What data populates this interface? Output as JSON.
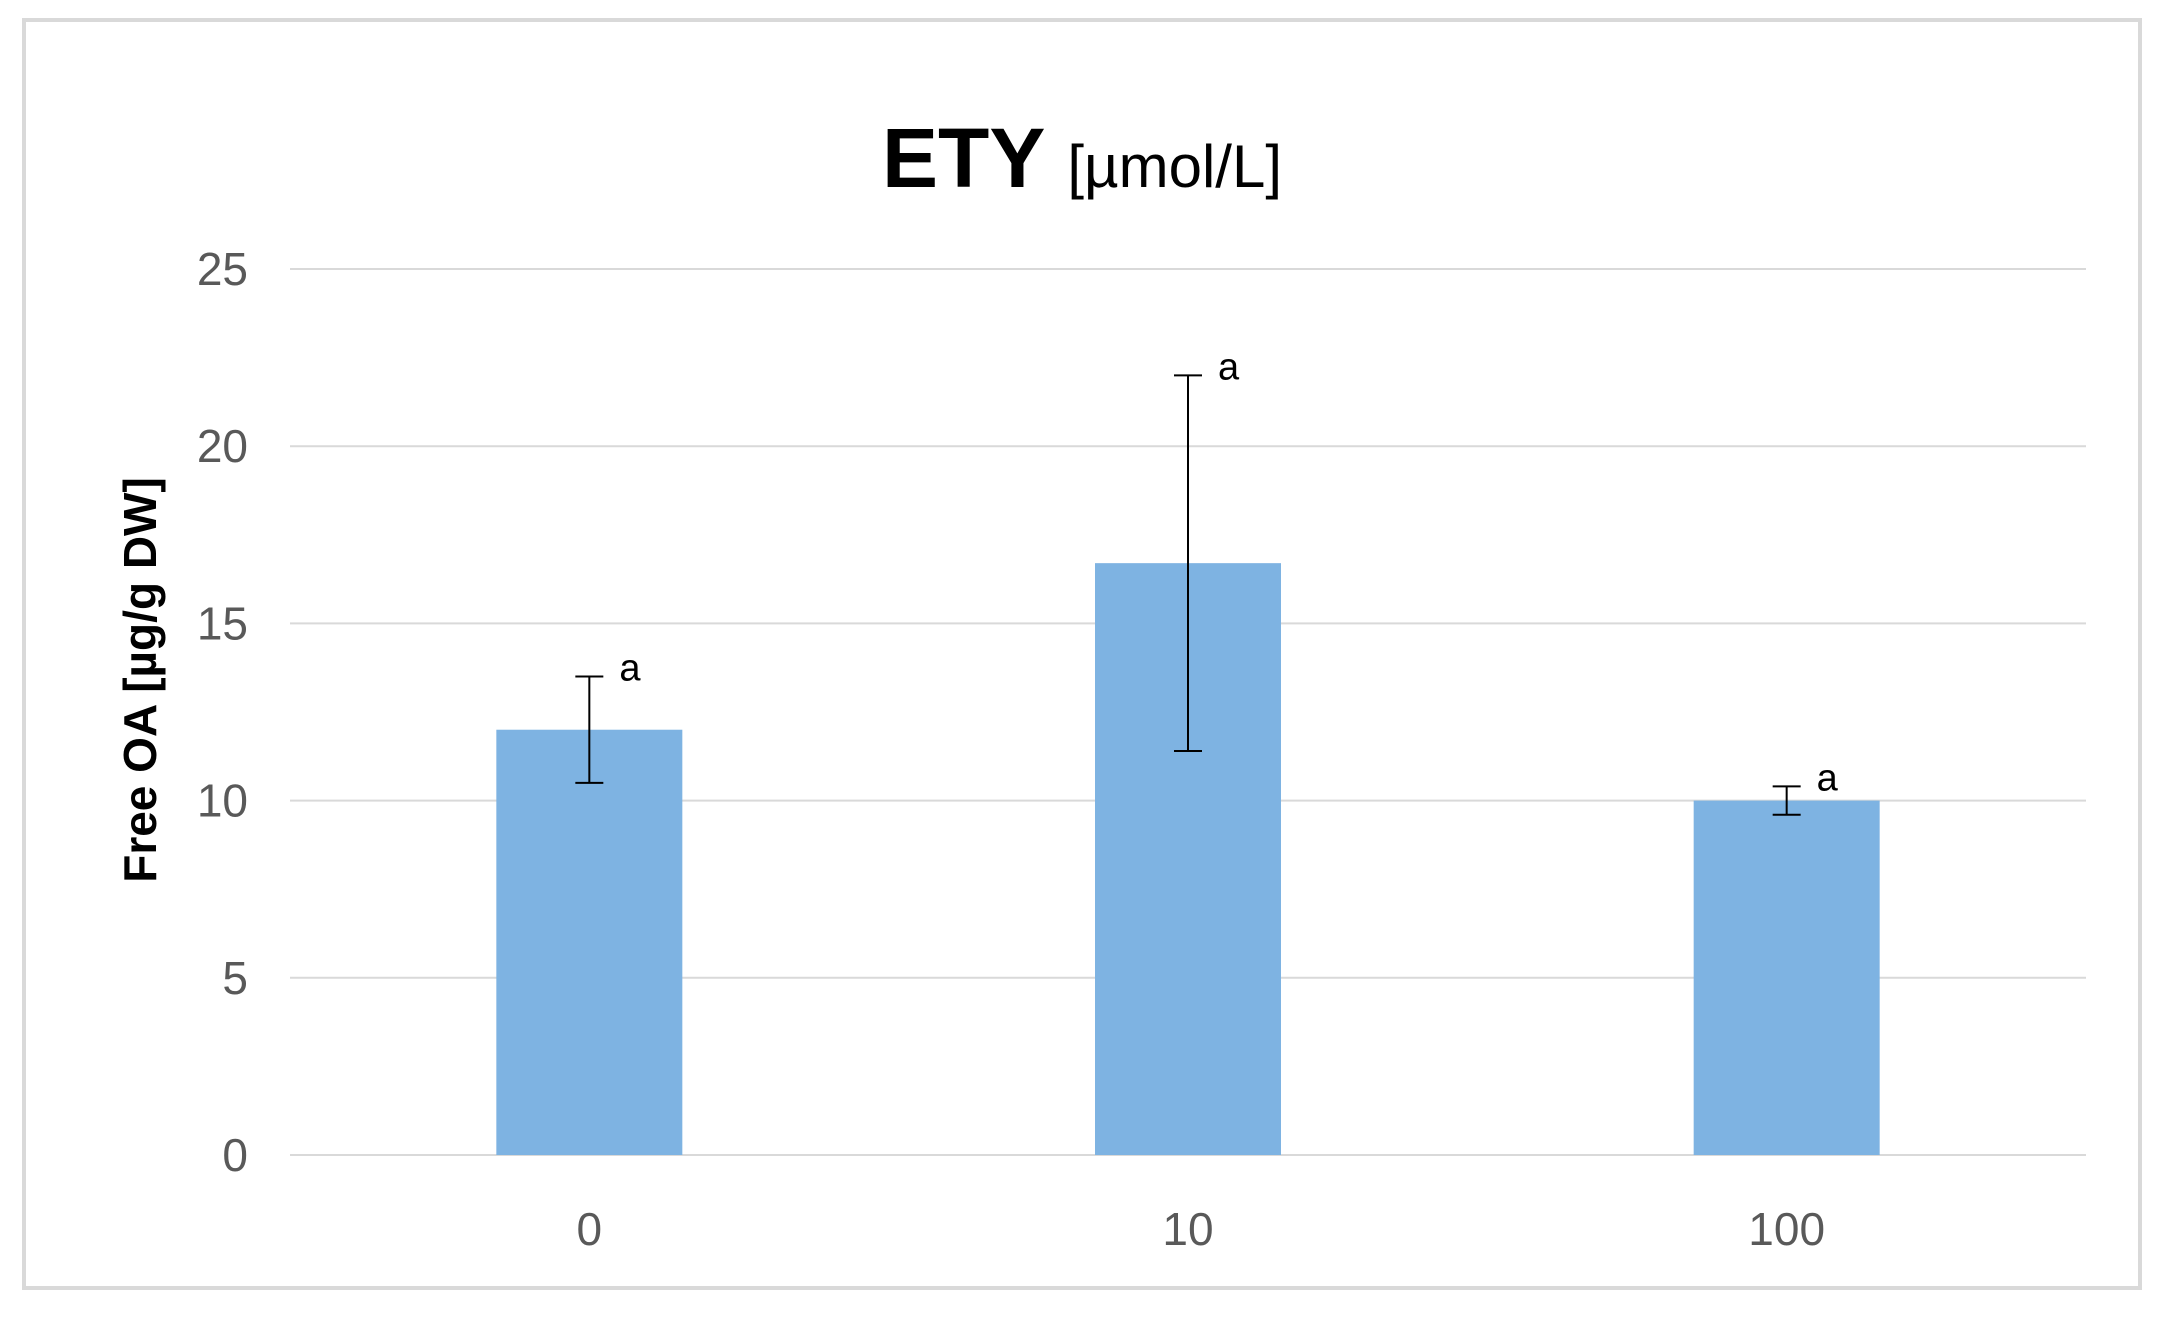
{
  "chart_data": {
    "type": "bar",
    "title": "ETY",
    "title_unit": "[µmol/L]",
    "xlabel": "",
    "ylabel": "Free OA [µg/g DW]",
    "categories": [
      "0",
      "10",
      "100"
    ],
    "values": [
      12.0,
      16.7,
      10.0
    ],
    "error": [
      1.5,
      5.3,
      0.4
    ],
    "annotations": [
      "a",
      "a",
      "a"
    ],
    "ylim": [
      0,
      25
    ],
    "yticks": [
      0,
      5,
      10,
      15,
      20,
      25
    ],
    "grid": true,
    "legend": "none",
    "bar_color": "#7eb3e2",
    "grid_color": "#d9d9d9",
    "error_color": "#000000"
  }
}
